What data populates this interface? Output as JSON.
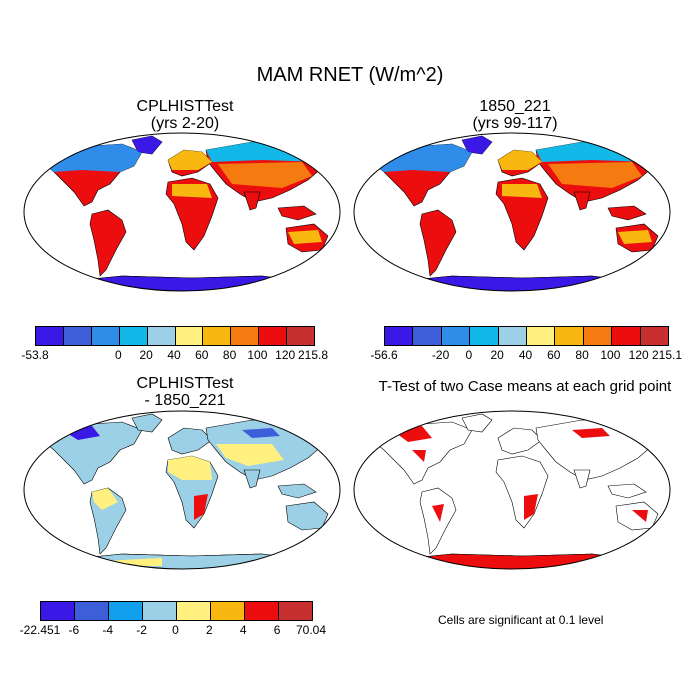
{
  "title": "MAM RNET (W/m^2)",
  "panels": {
    "p1": {
      "title": "CPLHISTTest",
      "subtitle": "(yrs 2-20)"
    },
    "p2": {
      "title": "1850_221",
      "subtitle": "(yrs 99-117)"
    },
    "p3": {
      "title": "CPLHISTTest",
      "subtitle": "- 1850_221"
    },
    "p4": {
      "title": "T-Test of two Case means at each grid point"
    }
  },
  "colorbars": {
    "cb1": {
      "labels": [
        "-53.8",
        "0",
        "20",
        "40",
        "60",
        "80",
        "100",
        "120",
        "215.8"
      ],
      "colors": [
        "#3a18e6",
        "#3c5ed8",
        "#2f8ce8",
        "#12b8e8",
        "#9bd0e6",
        "#fff080",
        "#f8b80f",
        "#f57a10",
        "#ec0e0e",
        "#c83030"
      ]
    },
    "cb2": {
      "labels": [
        "-56.6",
        "-20",
        "0",
        "20",
        "40",
        "60",
        "80",
        "100",
        "120",
        "215.1"
      ],
      "colors": [
        "#3a18e6",
        "#3c5ed8",
        "#2f8ce8",
        "#12b8e8",
        "#9bd0e6",
        "#fff080",
        "#f8b80f",
        "#f57a10",
        "#ec0e0e",
        "#c83030"
      ]
    },
    "cb3": {
      "labels": [
        "-22.451",
        "-6",
        "-4",
        "-2",
        "0",
        "2",
        "4",
        "6",
        "70.04"
      ],
      "colors": [
        "#3a18e6",
        "#3c5ed8",
        "#12a0ee",
        "#9bd0e6",
        "#fff080",
        "#f8b80f",
        "#ec0e0e",
        "#c83030"
      ]
    }
  },
  "significance_note": "Cells are significant at 0.1 level"
}
